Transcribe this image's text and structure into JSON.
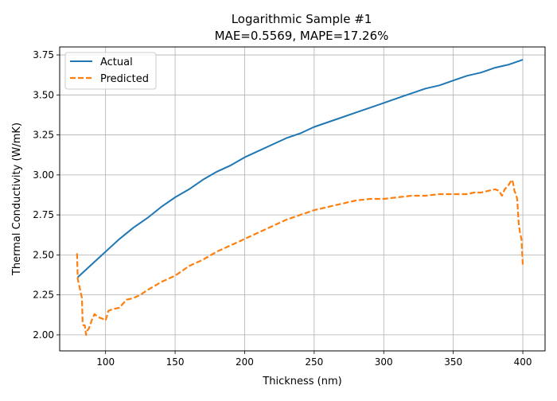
{
  "chart_data": {
    "type": "line",
    "title": "Logarithmic Sample #1",
    "subtitle": "MAE=0.5569, MAPE=17.26%",
    "xlabel": "Thickness (nm)",
    "ylabel": "Thermal Conductivity (W/mK)",
    "xlim": [
      67,
      416
    ],
    "ylim": [
      1.9,
      3.8
    ],
    "xticks": [
      100,
      150,
      200,
      250,
      300,
      350,
      400
    ],
    "yticks": [
      2.0,
      2.25,
      2.5,
      2.75,
      3.0,
      3.25,
      3.5,
      3.75
    ],
    "xtick_labels": [
      "100",
      "150",
      "200",
      "250",
      "300",
      "350",
      "400"
    ],
    "ytick_labels": [
      "2.00",
      "2.25",
      "2.50",
      "2.75",
      "3.00",
      "3.25",
      "3.50",
      "3.75"
    ],
    "grid": true,
    "legend_position": "top-left",
    "series": [
      {
        "name": "Actual",
        "color": "#1f77b4",
        "style": "solid",
        "x": [
          80,
          90,
          100,
          110,
          120,
          130,
          140,
          150,
          160,
          170,
          180,
          190,
          200,
          210,
          220,
          230,
          240,
          250,
          260,
          270,
          280,
          290,
          300,
          310,
          320,
          330,
          340,
          350,
          360,
          370,
          380,
          390,
          400
        ],
        "y": [
          2.36,
          2.44,
          2.52,
          2.6,
          2.67,
          2.73,
          2.8,
          2.86,
          2.91,
          2.97,
          3.02,
          3.06,
          3.11,
          3.15,
          3.19,
          3.23,
          3.26,
          3.3,
          3.33,
          3.36,
          3.39,
          3.42,
          3.45,
          3.48,
          3.51,
          3.54,
          3.56,
          3.59,
          3.62,
          3.64,
          3.67,
          3.69,
          3.72
        ]
      },
      {
        "name": "Predicted",
        "color": "#ff7f0e",
        "style": "dashed",
        "x": [
          79.5,
          80,
          81,
          82,
          83,
          83.5,
          84,
          85,
          86,
          87,
          88,
          90,
          92,
          95,
          98,
          100,
          102,
          105,
          110,
          115,
          120,
          125,
          130,
          140,
          150,
          160,
          170,
          180,
          190,
          200,
          210,
          220,
          230,
          240,
          250,
          260,
          270,
          280,
          290,
          300,
          310,
          320,
          330,
          340,
          350,
          360,
          365,
          370,
          375,
          380,
          383,
          385,
          387,
          390,
          392,
          393,
          394,
          395,
          396,
          397,
          398,
          399,
          400
        ],
        "y": [
          2.51,
          2.35,
          2.31,
          2.27,
          2.23,
          2.08,
          2.06,
          2.06,
          2.0,
          2.03,
          2.04,
          2.09,
          2.13,
          2.11,
          2.1,
          2.09,
          2.15,
          2.16,
          2.17,
          2.22,
          2.23,
          2.25,
          2.28,
          2.33,
          2.37,
          2.43,
          2.47,
          2.52,
          2.56,
          2.6,
          2.64,
          2.68,
          2.72,
          2.75,
          2.78,
          2.8,
          2.82,
          2.84,
          2.85,
          2.85,
          2.86,
          2.87,
          2.87,
          2.88,
          2.88,
          2.88,
          2.89,
          2.89,
          2.9,
          2.91,
          2.9,
          2.87,
          2.91,
          2.94,
          2.97,
          2.95,
          2.9,
          2.88,
          2.85,
          2.7,
          2.64,
          2.6,
          2.44
        ]
      }
    ]
  }
}
